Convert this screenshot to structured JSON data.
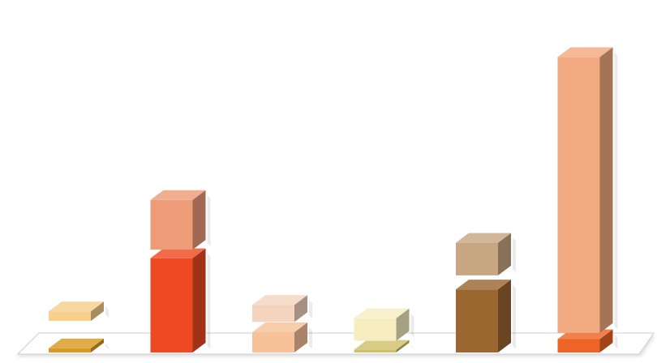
{
  "chart_data": {
    "type": "bar",
    "style": "3d-stacked-with-gaps",
    "categories": [
      "",
      "",
      "",
      "",
      "",
      ""
    ],
    "ylim": [
      0,
      100
    ],
    "grid": false,
    "legend": "none",
    "stacks": [
      {
        "bottom": 1.2,
        "gap": 8.0,
        "top": 2.8,
        "bottom_color": "#D99A22",
        "top_color": "#F6D08C"
      },
      {
        "bottom": 27.5,
        "gap": 2.5,
        "top": 14.5,
        "bottom_color": "#EE4922",
        "top_color": "#EE9B78"
      },
      {
        "bottom": 5.9,
        "gap": 3.0,
        "top": 5.0,
        "bottom_color": "#F7C29A",
        "top_color": "#F4D4BE"
      },
      {
        "bottom": 0.8,
        "gap": 2.6,
        "top": 6.6,
        "bottom_color": "#CFC06A",
        "top_color": "#F6EDC0"
      },
      {
        "bottom": 18.4,
        "gap": 4.1,
        "top": 9.5,
        "bottom_color": "#9B6731",
        "top_color": "#C8A682"
      },
      {
        "bottom": 3.9,
        "gap": 1.8,
        "top": 80.5,
        "bottom_color": "#EE6426",
        "top_color": "#F2AA80"
      }
    ]
  }
}
